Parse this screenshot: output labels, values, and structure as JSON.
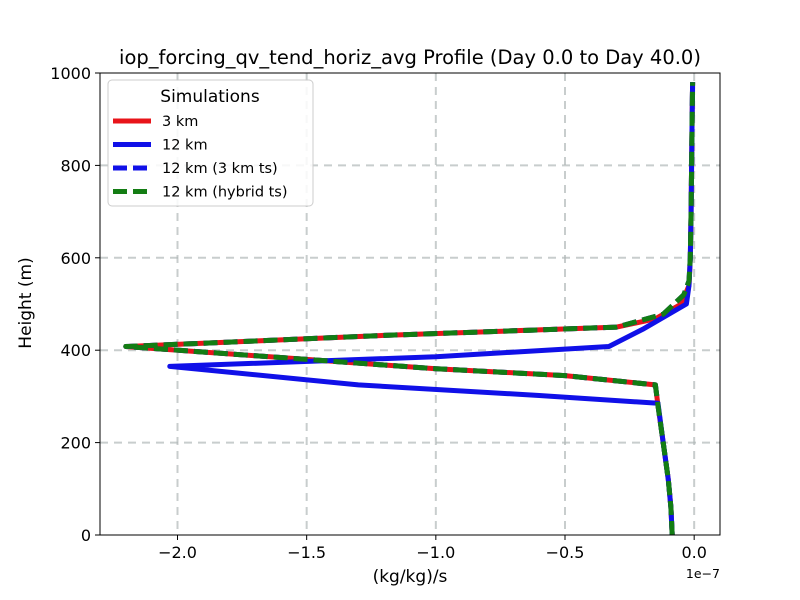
{
  "chart_data": {
    "type": "line",
    "title": "iop_forcing_qv_tend_horiz_avg Profile (Day 0.0 to Day 40.0)",
    "xlabel": "(kg/kg)/s",
    "ylabel": "Height (m)",
    "x_offset_label": "1e−7",
    "xlim": [
      -2.3,
      0.1
    ],
    "ylim": [
      0,
      1000
    ],
    "x_ticks": [
      -2.0,
      -1.5,
      -1.0,
      -0.5,
      0.0
    ],
    "x_tick_labels": [
      "−2.0",
      "−1.5",
      "−1.0",
      "−0.5",
      "0.0"
    ],
    "y_ticks": [
      0,
      200,
      400,
      600,
      800,
      1000
    ],
    "y_tick_labels": [
      "0",
      "200",
      "400",
      "600",
      "800",
      "1000"
    ],
    "grid": true,
    "legend_title": "Simulations",
    "legend_position": "upper-left",
    "series": [
      {
        "name": "3 km",
        "color": "#e8141a",
        "style": "solid",
        "points": [
          [
            -0.085,
            0
          ],
          [
            -0.09,
            60
          ],
          [
            -0.1,
            120
          ],
          [
            -0.12,
            200
          ],
          [
            -0.14,
            280
          ],
          [
            -0.15,
            325
          ],
          [
            -0.5,
            345
          ],
          [
            -1.0,
            360
          ],
          [
            -1.5,
            380
          ],
          [
            -2.2,
            408
          ],
          [
            -1.7,
            420
          ],
          [
            -1.2,
            432
          ],
          [
            -0.7,
            442
          ],
          [
            -0.3,
            450
          ],
          [
            -0.15,
            468
          ],
          [
            -0.05,
            500
          ],
          [
            -0.02,
            540
          ],
          [
            -0.015,
            600
          ],
          [
            -0.012,
            700
          ],
          [
            -0.01,
            800
          ],
          [
            -0.008,
            900
          ],
          [
            -0.006,
            980
          ]
        ]
      },
      {
        "name": "12 km",
        "color": "#1010e8",
        "style": "solid",
        "points": [
          [
            -0.085,
            0
          ],
          [
            -0.09,
            60
          ],
          [
            -0.1,
            120
          ],
          [
            -0.12,
            200
          ],
          [
            -0.14,
            285
          ],
          [
            -0.6,
            302
          ],
          [
            -1.3,
            325
          ],
          [
            -2.03,
            365
          ],
          [
            -1.0,
            386
          ],
          [
            -0.33,
            408
          ],
          [
            -0.2,
            445
          ],
          [
            -0.03,
            500
          ],
          [
            -0.02,
            540
          ],
          [
            -0.015,
            600
          ],
          [
            -0.012,
            700
          ],
          [
            -0.01,
            800
          ],
          [
            -0.008,
            900
          ],
          [
            -0.006,
            980
          ]
        ]
      },
      {
        "name": "12 km (3 km ts)",
        "color": "#1010e8",
        "style": "dashed",
        "points": [
          [
            -0.085,
            0
          ],
          [
            -0.09,
            60
          ],
          [
            -0.1,
            120
          ],
          [
            -0.12,
            200
          ],
          [
            -0.14,
            280
          ],
          [
            -0.15,
            325
          ],
          [
            -0.5,
            345
          ],
          [
            -1.0,
            360
          ],
          [
            -1.5,
            380
          ],
          [
            -2.2,
            408
          ],
          [
            -1.7,
            420
          ],
          [
            -1.2,
            432
          ],
          [
            -0.7,
            442
          ],
          [
            -0.3,
            450
          ],
          [
            -0.12,
            478
          ],
          [
            -0.04,
            520
          ],
          [
            -0.02,
            550
          ],
          [
            -0.015,
            600
          ],
          [
            -0.012,
            700
          ],
          [
            -0.01,
            800
          ],
          [
            -0.008,
            900
          ],
          [
            -0.006,
            980
          ]
        ]
      },
      {
        "name": "12 km (hybrid ts)",
        "color": "#137d13",
        "style": "dashed",
        "points": [
          [
            -0.085,
            0
          ],
          [
            -0.09,
            60
          ],
          [
            -0.1,
            120
          ],
          [
            -0.12,
            200
          ],
          [
            -0.14,
            280
          ],
          [
            -0.15,
            325
          ],
          [
            -0.5,
            345
          ],
          [
            -1.0,
            360
          ],
          [
            -1.5,
            380
          ],
          [
            -2.2,
            408
          ],
          [
            -1.7,
            420
          ],
          [
            -1.2,
            432
          ],
          [
            -0.7,
            442
          ],
          [
            -0.3,
            450
          ],
          [
            -0.12,
            478
          ],
          [
            -0.04,
            520
          ],
          [
            -0.02,
            550
          ],
          [
            -0.015,
            600
          ],
          [
            -0.012,
            700
          ],
          [
            -0.01,
            800
          ],
          [
            -0.008,
            900
          ],
          [
            -0.006,
            980
          ]
        ]
      }
    ]
  }
}
